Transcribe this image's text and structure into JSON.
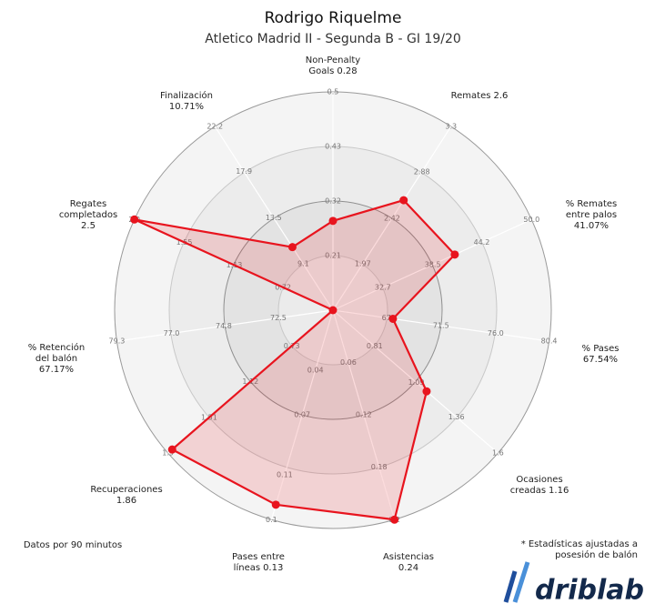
{
  "chart_data": {
    "type": "radar",
    "title": "Rodrigo Riquelme",
    "subtitle": "Atletico Madrid II - Segunda B - GI 19/20",
    "color": "#e8141e",
    "categories": [
      [
        "Non-Penalty",
        "Goals"
      ],
      [
        "Remates"
      ],
      [
        "% Remates",
        "entre palos"
      ],
      [
        "% Pases"
      ],
      [
        "Ocasiones",
        "creadas"
      ],
      [
        "Asistencias"
      ],
      [
        "Pases entre",
        "líneas"
      ],
      [
        "Recuperaciones"
      ],
      [
        "% Retención",
        "del balón"
      ],
      [
        "Regates",
        "completados"
      ],
      [
        "Finalización"
      ]
    ],
    "values": [
      0.28,
      2.6,
      41.07,
      67.54,
      1.16,
      0.24,
      0.13,
      1.86,
      67.17,
      2.5,
      10.71
    ],
    "value_labels": [
      "0.28",
      "2.6",
      "41.07%",
      "67.54%",
      "1.16",
      "0.24",
      "0.13",
      "1.86",
      "67.17%",
      "2.5",
      "10.71%"
    ],
    "axes": [
      {
        "range": [
          0.1,
          0.54
        ],
        "ticks": [
          0.21,
          0.32,
          0.43,
          {
            "value": 0.54,
            "label": "0.5"
          }
        ]
      },
      {
        "range": [
          1.51,
          3.33
        ],
        "ticks": [
          1.97,
          2.42,
          2.88,
          {
            "value": 3.33,
            "label": "3.3"
          }
        ]
      },
      {
        "range": [
          26.9,
          50.0
        ],
        "ticks": [
          32.7,
          38.5,
          44.2,
          {
            "value": 50.0,
            "label": "50.0"
          }
        ]
      },
      {
        "range": [
          62.6,
          80.4
        ],
        "ticks": [
          {
            "value": 67.0,
            "label": "67"
          },
          71.5,
          {
            "value": 76.0,
            "label": "76.0"
          },
          80.4
        ]
      },
      {
        "range": [
          0.53,
          1.64
        ],
        "ticks": [
          0.81,
          1.09,
          1.36,
          {
            "value": 1.64,
            "label": "1.6"
          }
        ]
      },
      {
        "range": [
          0.0,
          0.24
        ],
        "ticks": [
          0.06,
          0.12,
          0.18,
          {
            "value": 0.24,
            "label": "0.2"
          }
        ]
      },
      {
        "range": [
          0.0,
          0.14
        ],
        "ticks": [
          0.04,
          0.07,
          0.11,
          {
            "value": 0.14,
            "label": "0.1"
          }
        ]
      },
      {
        "range": [
          0.34,
          1.9
        ],
        "ticks": [
          0.73,
          1.12,
          1.51,
          1.9
        ]
      },
      {
        "range": [
          70.2,
          79.3
        ],
        "ticks": [
          72.5,
          74.8,
          {
            "value": 77.0,
            "label": "77.0"
          },
          79.3
        ]
      },
      {
        "range": [
          0.3,
          1.97
        ],
        "ticks": [
          0.72,
          1.13,
          1.55,
          {
            "value": 1.97,
            "label": "2.0"
          }
        ]
      },
      {
        "range": [
          4.7,
          22.2
        ],
        "ticks": [
          9.1,
          13.5,
          17.9,
          22.2
        ]
      }
    ],
    "notes": [
      "Datos por 90 minutos",
      "* Estadísticas ajustadas a",
      "posesión de balón"
    ],
    "logo": "driblab"
  }
}
